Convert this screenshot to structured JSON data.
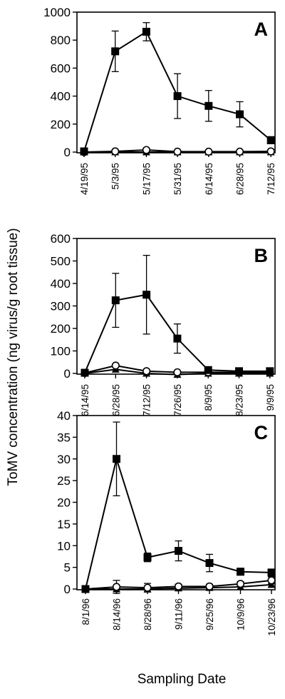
{
  "figure": {
    "ylabel": "ToMV concentration (ng virus/g root tissue)",
    "xlabel": "Sampling Date"
  },
  "chart_data": [
    {
      "type": "line",
      "panel_label": "A",
      "ylim": [
        0,
        1000
      ],
      "yticks": [
        0,
        200,
        400,
        600,
        800,
        1000
      ],
      "categories": [
        "4/19/95",
        "5/3/95",
        "5/17/95",
        "5/31/95",
        "6/14/95",
        "6/28/95",
        "7/12/95"
      ],
      "grid": false,
      "series": [
        {
          "marker": "filled-square",
          "values": [
            5,
            720,
            860,
            400,
            330,
            270,
            85
          ],
          "errors": [
            0,
            145,
            65,
            160,
            110,
            90,
            25
          ]
        },
        {
          "marker": "open-circle",
          "values": [
            0,
            5,
            15,
            3,
            3,
            3,
            5
          ],
          "errors": [
            0,
            0,
            12,
            0,
            0,
            0,
            0
          ]
        },
        {
          "marker": "filled-triangle",
          "values": [
            0,
            0,
            0,
            0,
            0,
            0,
            0
          ],
          "errors": [
            0,
            0,
            0,
            0,
            0,
            0,
            0
          ]
        }
      ]
    },
    {
      "type": "line",
      "panel_label": "B",
      "ylim": [
        0,
        600
      ],
      "yticks": [
        0,
        100,
        200,
        300,
        400,
        500,
        600
      ],
      "categories": [
        "6/14/95",
        "6/28/95",
        "7/12/95",
        "7/26/95",
        "8/9/95",
        "8/23/95",
        "9/9/95"
      ],
      "grid": false,
      "series": [
        {
          "marker": "filled-square",
          "values": [
            3,
            325,
            350,
            155,
            15,
            10,
            10
          ],
          "errors": [
            0,
            120,
            175,
            65,
            0,
            0,
            0
          ]
        },
        {
          "marker": "open-circle",
          "values": [
            2,
            35,
            10,
            5,
            5,
            5,
            5
          ],
          "errors": [
            0,
            0,
            0,
            0,
            0,
            0,
            0
          ]
        },
        {
          "marker": "filled-triangle",
          "values": [
            0,
            18,
            0,
            -5,
            0,
            0,
            0
          ],
          "errors": [
            0,
            0,
            0,
            0,
            0,
            0,
            0
          ]
        }
      ]
    },
    {
      "type": "line",
      "panel_label": "C",
      "ylim": [
        0,
        40
      ],
      "yticks": [
        0,
        5,
        10,
        15,
        20,
        25,
        30,
        35,
        40
      ],
      "categories": [
        "8/1/96",
        "8/14/96",
        "8/28/96",
        "9/11/96",
        "9/25/96",
        "10/9/96",
        "10/23/96"
      ],
      "grid": false,
      "series": [
        {
          "marker": "filled-square",
          "values": [
            0,
            30,
            7.3,
            8.8,
            6,
            4,
            3.8
          ],
          "errors": [
            0,
            8.5,
            1,
            2.3,
            2,
            0.8,
            0.8
          ]
        },
        {
          "marker": "open-circle",
          "values": [
            0,
            0.5,
            0.3,
            0.6,
            0.6,
            1.2,
            2
          ],
          "errors": [
            0,
            1.5,
            1,
            0.5,
            0.5,
            0.5,
            0.8
          ]
        },
        {
          "marker": "filled-triangle",
          "values": [
            0,
            0,
            0,
            0.2,
            0.3,
            0.5,
            1
          ],
          "errors": [
            0,
            0,
            0,
            0,
            0,
            0,
            0
          ]
        }
      ]
    }
  ]
}
